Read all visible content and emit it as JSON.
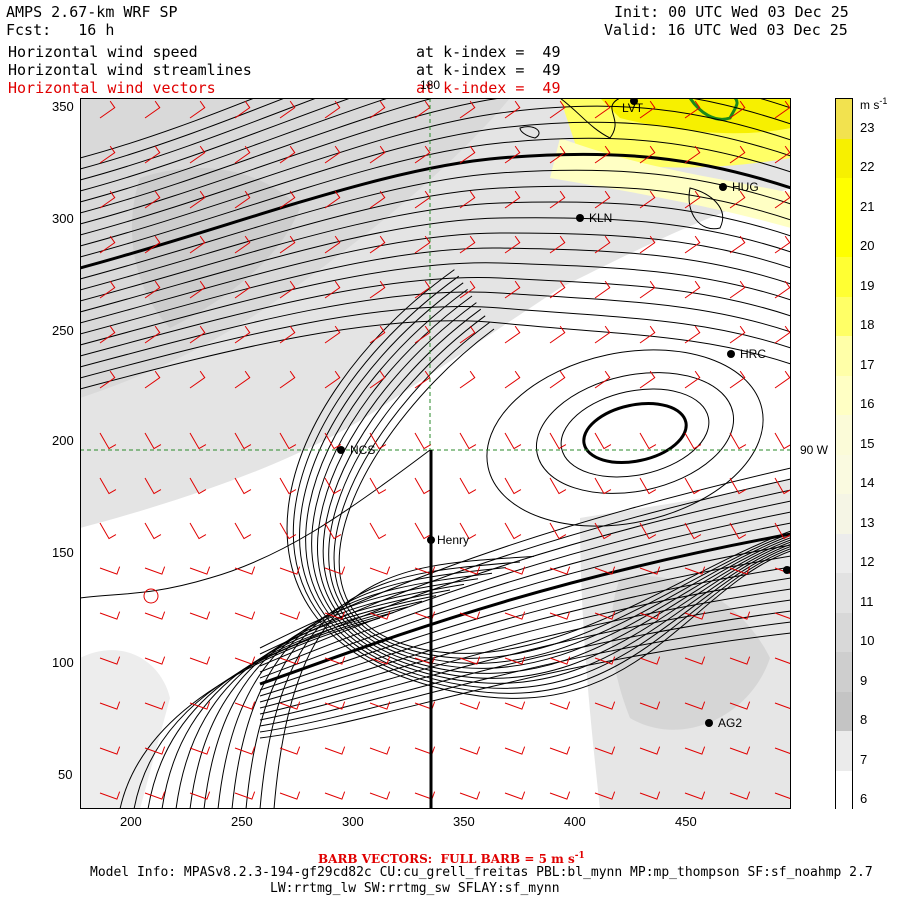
{
  "header": {
    "model_title": "AMPS 2.67-km WRF SP",
    "forecast": "Fcst:   16 h",
    "init": "Init: 00 UTC Wed 03 Dec 25",
    "valid": "Valid: 16 UTC Wed 03 Dec 25",
    "fields": [
      {
        "name": "Horizontal wind speed",
        "level": "at k-index =  49"
      },
      {
        "name": "Horizontal wind streamlines",
        "level": "at k-index =  49"
      },
      {
        "name": "Horizontal wind vectors",
        "level": "at k-index =  49"
      }
    ]
  },
  "map": {
    "x_ticks": [
      "200",
      "250",
      "300",
      "350",
      "400",
      "450"
    ],
    "y_ticks": [
      "350",
      "300",
      "250",
      "200",
      "150",
      "100",
      "50"
    ],
    "meridian_label": "180",
    "parallel_label": "90 W",
    "stations": [
      {
        "name": "LVT"
      },
      {
        "name": "HUG"
      },
      {
        "name": "KLN"
      },
      {
        "name": "HRC"
      },
      {
        "name": "NCS"
      },
      {
        "name": "Henry"
      },
      {
        "name": "AG2"
      }
    ]
  },
  "colorbar": {
    "unit": "m s",
    "unit_exp": "-1",
    "labels": [
      "23",
      "22",
      "21",
      "20",
      "19",
      "18",
      "17",
      "16",
      "15",
      "14",
      "13",
      "12",
      "11",
      "10",
      "9",
      "8",
      "7",
      "6"
    ],
    "colors": [
      "#f2e24f",
      "#f7f000",
      "#ffff00",
      "#ffff00",
      "#ffff33",
      "#ffff66",
      "#ffffa8",
      "#ffffc4",
      "#fbfbd8",
      "#fafae0",
      "#f5f5e5",
      "#ececec",
      "#e2e2e2",
      "#d8d8d8",
      "#cecece",
      "#c4c4c4",
      "#ebebeb",
      "#ffffff"
    ]
  },
  "footer": {
    "barb_prefix": "BARB VECTORS:  FULL BARB = 5 m s",
    "barb_exp": "-1",
    "model_info_1": "Model Info: MPASv8.2.3-194-gf29cd82c CU:cu_grell_freitas PBL:bl_mynn MP:mp_thompson SF:sf_noahmp 2.7",
    "model_info_2": "LW:rrtmg_lw SW:rrtmg_sw SFLAY:sf_mynn"
  }
}
